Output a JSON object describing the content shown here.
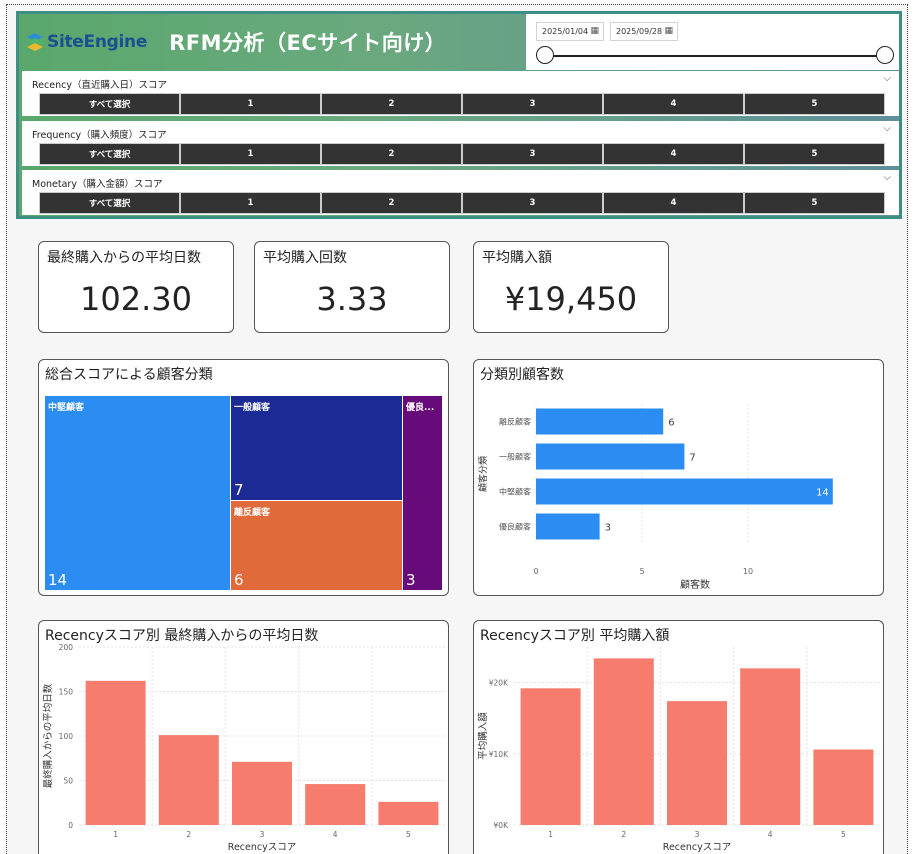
{
  "header": {
    "logo_text": "SiteEngine",
    "title": "RFM分析（ECサイト向け）",
    "date_start": "2025/01/04",
    "date_end": "2025/09/28"
  },
  "slicers": [
    {
      "label": "Recency（直近購入日）スコア",
      "options": [
        "すべて選択",
        "1",
        "2",
        "3",
        "4",
        "5"
      ]
    },
    {
      "label": "Frequency（購入頻度）スコア",
      "options": [
        "すべて選択",
        "1",
        "2",
        "3",
        "4",
        "5"
      ]
    },
    {
      "label": "Monetary（購入金額）スコア",
      "options": [
        "すべて選択",
        "1",
        "2",
        "3",
        "4",
        "5"
      ]
    }
  ],
  "kpis": [
    {
      "title": "最終購入からの平均日数",
      "value": "102.30"
    },
    {
      "title": "平均購入回数",
      "value": "3.33"
    },
    {
      "title": "平均購入額",
      "value": "¥19,450"
    }
  ],
  "treemap": {
    "title": "総合スコアによる顧客分類",
    "colors": {
      "中堅顧客": "#2b8cf2",
      "一般顧客": "#1b2a95",
      "離反顧客": "#e06a3a",
      "優良顧客": "#680b7a"
    },
    "cells": [
      {
        "label": "中堅顧客",
        "value": "14"
      },
      {
        "label": "一般顧客",
        "value": "7"
      },
      {
        "label": "離反顧客",
        "value": "6"
      },
      {
        "label": "優良...",
        "value": "3"
      }
    ]
  },
  "chart_data": [
    {
      "type": "bar",
      "orientation": "horizontal",
      "title": "分類別顧客数",
      "categories": [
        "離反顧客",
        "一般顧客",
        "中堅顧客",
        "優良顧客"
      ],
      "values": [
        6,
        7,
        14,
        3
      ],
      "xlabel": "顧客数",
      "ylabel": "顧客分類",
      "xlim": [
        0,
        15
      ],
      "xticks": [
        "0",
        "5",
        "10"
      ],
      "grid": true,
      "color": "#2b8cf2"
    },
    {
      "type": "bar",
      "title": "Recencyスコア別 最終購入からの平均日数",
      "categories": [
        "1",
        "2",
        "3",
        "4",
        "5"
      ],
      "values": [
        162,
        101,
        71,
        46,
        26
      ],
      "xlabel": "Recencyスコア",
      "ylabel": "最終購入からの平均日数",
      "ylim": [
        0,
        200
      ],
      "yticks": [
        "0",
        "50",
        "100",
        "150",
        "200"
      ],
      "grid": true,
      "color": "#f67d6e"
    },
    {
      "type": "bar",
      "title": "Recencyスコア別 平均購入額",
      "categories": [
        "1",
        "2",
        "3",
        "4",
        "5"
      ],
      "values": [
        19200,
        23400,
        17400,
        22000,
        10600
      ],
      "xlabel": "Recencyスコア",
      "ylabel": "平均購入額",
      "ylim": [
        0,
        25000
      ],
      "yticks": [
        "¥0K",
        "¥10K",
        "¥20K"
      ],
      "grid": true,
      "color": "#f67d6e"
    }
  ]
}
